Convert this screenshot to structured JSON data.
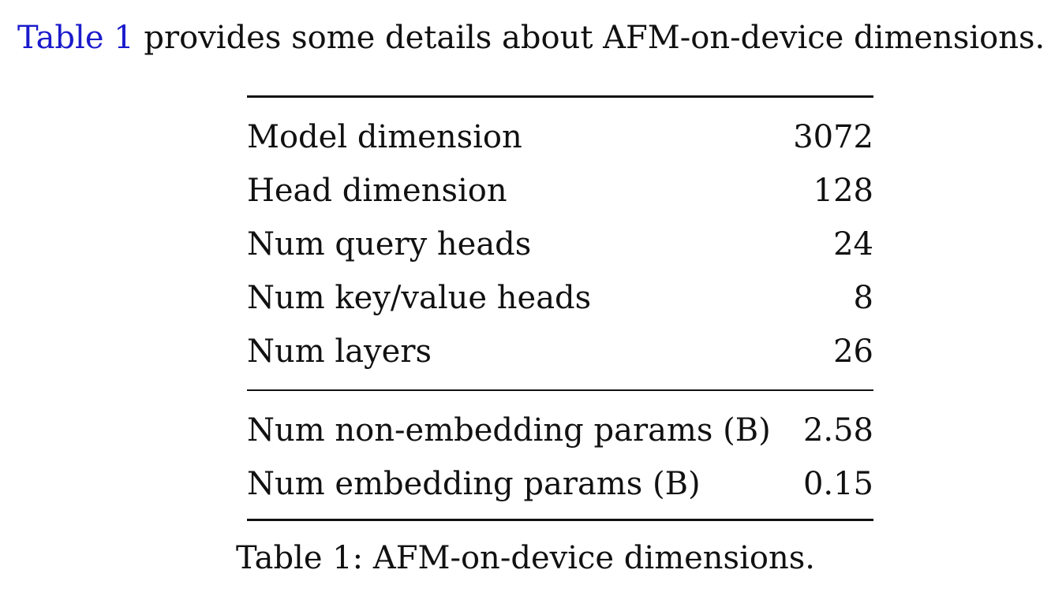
{
  "intro": {
    "ref_text": "Table 1",
    "rest_text": " provides some details about AFM-on-device dimensions."
  },
  "table": {
    "rows_top": [
      {
        "label": "Model dimension",
        "value": "3072"
      },
      {
        "label": "Head dimension",
        "value": "128"
      },
      {
        "label": "Num query heads",
        "value": "24"
      },
      {
        "label": "Num key/value heads",
        "value": "8"
      },
      {
        "label": "Num layers",
        "value": "26"
      }
    ],
    "rows_bottom": [
      {
        "label": "Num non-embedding params (B)",
        "value": "2.58"
      },
      {
        "label": "Num embedding params (B)",
        "value": "0.15"
      }
    ]
  },
  "caption": "Table 1: AFM-on-device dimensions.",
  "colors": {
    "link": "#1a1acc",
    "text": "#111111",
    "background": "#ffffff"
  }
}
